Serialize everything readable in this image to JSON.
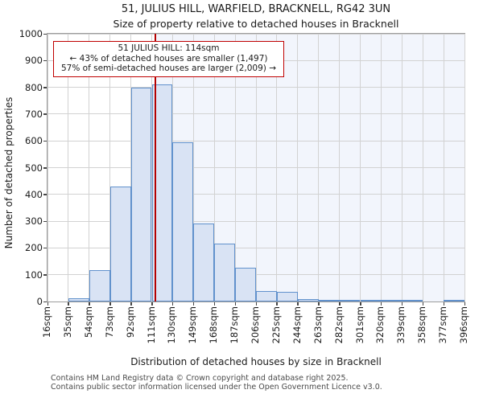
{
  "title": "51, JULIUS HILL, WARFIELD, BRACKNELL, RG42 3UN",
  "subtitle": "Size of property relative to detached houses in Bracknell",
  "annotation": {
    "line1": "51 JULIUS HILL: 114sqm",
    "line2": "← 43% of detached houses are smaller (1,497)",
    "line3": "57% of semi-detached houses are larger (2,009) →"
  },
  "chart_data": {
    "type": "bar",
    "title": "51, JULIUS HILL, WARFIELD, BRACKNELL, RG42 3UN",
    "subtitle": "Size of property relative to detached houses in Bracknell",
    "xlabel": "Distribution of detached houses by size in Bracknell",
    "ylabel": "Number of detached properties",
    "categories": [
      "16sqm",
      "35sqm",
      "54sqm",
      "73sqm",
      "92sqm",
      "111sqm",
      "130sqm",
      "149sqm",
      "168sqm",
      "187sqm",
      "206sqm",
      "225sqm",
      "244sqm",
      "263sqm",
      "282sqm",
      "301sqm",
      "320sqm",
      "339sqm",
      "358sqm",
      "377sqm",
      "396sqm"
    ],
    "bin_edges_sqm": [
      16,
      35,
      54,
      73,
      92,
      111,
      130,
      149,
      168,
      187,
      206,
      225,
      244,
      263,
      282,
      301,
      320,
      339,
      358,
      377,
      396
    ],
    "bin_width_sqm": 19,
    "values": [
      0,
      11,
      118,
      430,
      800,
      810,
      595,
      290,
      215,
      126,
      40,
      35,
      10,
      5,
      5,
      3,
      3,
      3,
      0,
      3
    ],
    "ylim": [
      0,
      1000
    ],
    "yticks": [
      0,
      100,
      200,
      300,
      400,
      500,
      600,
      700,
      800,
      900,
      1000
    ],
    "grid": true,
    "legend": "none",
    "marker": {
      "value_sqm": 114,
      "color": "#b50000"
    },
    "shade_range_sqm": [
      114,
      396
    ],
    "colors": {
      "bar_fill": "#d9e3f4",
      "bar_stroke": "#6191cc",
      "shade_fill": "#f2f5fc",
      "gridline": "#d2d2d2",
      "annotation_border": "#c00000"
    }
  },
  "footer": {
    "line1": "Contains HM Land Registry data © Crown copyright and database right 2025.",
    "line2": "Contains public sector information licensed under the Open Government Licence v3.0."
  }
}
